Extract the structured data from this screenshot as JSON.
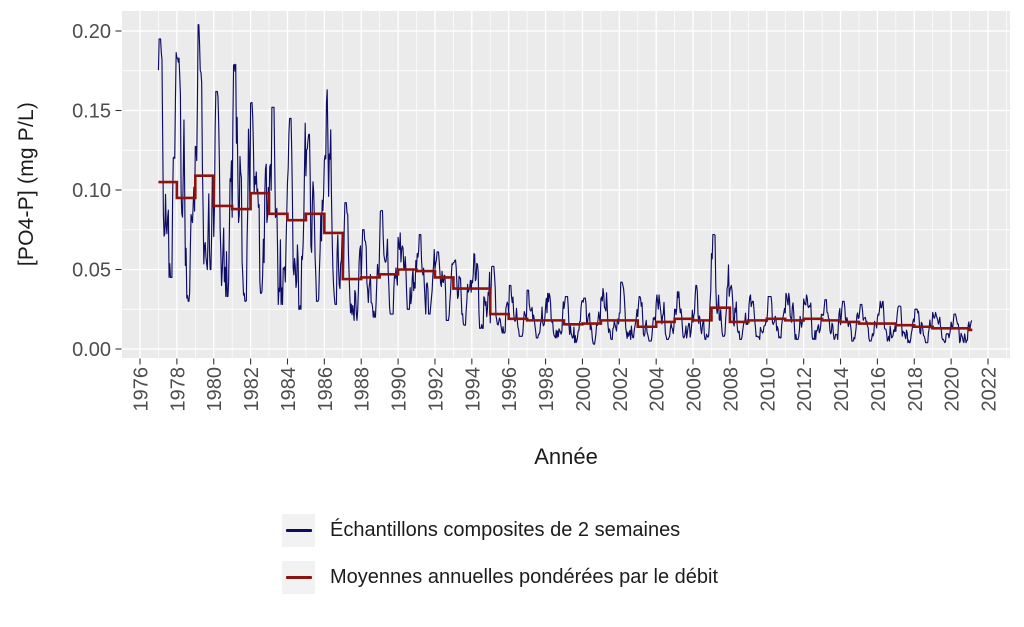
{
  "chart_data": {
    "type": "line",
    "title": "",
    "xlabel": "Année",
    "ylabel": "[PO4-P] (mg P/L)",
    "grid": true,
    "legend_position": "bottom",
    "x_axis": {
      "tick_years": [
        1976,
        1978,
        1980,
        1982,
        1984,
        1986,
        1988,
        1990,
        1992,
        1994,
        1996,
        1998,
        2000,
        2002,
        2004,
        2006,
        2008,
        2010,
        2012,
        2014,
        2016,
        2018,
        2020,
        2022
      ],
      "tick_labels": [
        "1976",
        "1978",
        "1980",
        "1982",
        "1984",
        "1986",
        "1988",
        "1990",
        "1992",
        "1994",
        "1996",
        "1998",
        "2000",
        "2002",
        "2004",
        "2006",
        "2008",
        "2010",
        "2012",
        "2014",
        "2016",
        "2018",
        "2020",
        "2022"
      ],
      "minor_years": [
        1977,
        1979,
        1981,
        1983,
        1985,
        1987,
        1989,
        1991,
        1993,
        1995,
        1997,
        1999,
        2001,
        2003,
        2005,
        2007,
        2009,
        2011,
        2013,
        2015,
        2017,
        2019,
        2021,
        2023
      ],
      "range": [
        1975.0,
        2023.2
      ]
    },
    "y_axis": {
      "tick_values": [
        0.0,
        0.05,
        0.1,
        0.15,
        0.2
      ],
      "tick_labels": [
        "0.00",
        "0.05",
        "0.10",
        "0.15",
        "0.20"
      ],
      "minor_values": [
        0.025,
        0.075,
        0.125,
        0.175
      ],
      "range": [
        -0.006,
        0.213
      ]
    },
    "colors": {
      "panel_bg": "#EBEBEB",
      "grid": "#FFFFFF",
      "legend_key_bg": "#F2F2F2",
      "axis_text": "#4D4D4D",
      "title_text": "#1c1c1c",
      "tick_mark": "#333333",
      "samples_blue": "#0d0d66",
      "means_red": "#8B1410"
    },
    "legend": [
      {
        "label": "Échantillons composites de 2 semaines",
        "color": "#0d0d66"
      },
      {
        "label": "Moyennes annuelles pondérées par le débit",
        "color": "#8B1410"
      }
    ],
    "x_start": 1977.0,
    "x_end": 2021.15,
    "series": [
      {
        "name": "Échantillons composites de 2 semaines",
        "type": "biweekly_samples_line",
        "color": "#0d0d66",
        "samples_per_year": 26,
        "annual_envelope_note": "per year: [year, annual mean, seasonal max, seasonal min] in mg P/L, read from plot",
        "annual_envelope": [
          [
            1977,
            0.105,
            0.195,
            0.045
          ],
          [
            1978,
            0.095,
            0.183,
            0.03
          ],
          [
            1979,
            0.109,
            0.204,
            0.05
          ],
          [
            1980,
            0.09,
            0.162,
            0.033
          ],
          [
            1981,
            0.088,
            0.179,
            0.03
          ],
          [
            1982,
            0.098,
            0.155,
            0.035
          ],
          [
            1983,
            0.085,
            0.152,
            0.028
          ],
          [
            1984,
            0.081,
            0.145,
            0.025
          ],
          [
            1985,
            0.085,
            0.135,
            0.03
          ],
          [
            1986,
            0.073,
            0.163,
            0.028
          ],
          [
            1987,
            0.044,
            0.092,
            0.018
          ],
          [
            1988,
            0.045,
            0.075,
            0.02
          ],
          [
            1989,
            0.047,
            0.087,
            0.022
          ],
          [
            1990,
            0.05,
            0.073,
            0.025
          ],
          [
            1991,
            0.049,
            0.072,
            0.022
          ],
          [
            1992,
            0.045,
            0.061,
            0.018
          ],
          [
            1993,
            0.038,
            0.056,
            0.015
          ],
          [
            1994,
            0.038,
            0.06,
            0.013
          ],
          [
            1995,
            0.022,
            0.052,
            0.01
          ],
          [
            1996,
            0.019,
            0.04,
            0.008
          ],
          [
            1997,
            0.018,
            0.037,
            0.007
          ],
          [
            1998,
            0.018,
            0.035,
            0.007
          ],
          [
            1999,
            0.0155,
            0.033,
            0.004
          ],
          [
            2000,
            0.016,
            0.032,
            0.003
          ],
          [
            2001,
            0.018,
            0.038,
            0.006
          ],
          [
            2002,
            0.018,
            0.042,
            0.006
          ],
          [
            2003,
            0.014,
            0.033,
            0.005
          ],
          [
            2004,
            0.017,
            0.034,
            0.006
          ],
          [
            2005,
            0.019,
            0.036,
            0.007
          ],
          [
            2006,
            0.018,
            0.04,
            0.006
          ],
          [
            2007,
            0.026,
            0.072,
            0.008
          ],
          [
            2008,
            0.017,
            0.04,
            0.006
          ],
          [
            2009,
            0.018,
            0.034,
            0.006
          ],
          [
            2010,
            0.019,
            0.033,
            0.007
          ],
          [
            2011,
            0.018,
            0.035,
            0.006
          ],
          [
            2012,
            0.019,
            0.034,
            0.006
          ],
          [
            2013,
            0.018,
            0.031,
            0.006
          ],
          [
            2014,
            0.017,
            0.03,
            0.005
          ],
          [
            2015,
            0.016,
            0.028,
            0.005
          ],
          [
            2016,
            0.016,
            0.03,
            0.005
          ],
          [
            2017,
            0.015,
            0.027,
            0.004
          ],
          [
            2018,
            0.014,
            0.025,
            0.004
          ],
          [
            2019,
            0.013,
            0.023,
            0.004
          ],
          [
            2020,
            0.013,
            0.022,
            0.004
          ],
          [
            2021,
            0.012,
            0.018,
            0.006
          ]
        ]
      },
      {
        "name": "Moyennes annuelles pondérées par le débit",
        "type": "step",
        "color": "#8B1410",
        "years": [
          1977,
          1978,
          1979,
          1980,
          1981,
          1982,
          1983,
          1984,
          1985,
          1986,
          1987,
          1988,
          1989,
          1990,
          1991,
          1992,
          1993,
          1994,
          1995,
          1996,
          1997,
          1998,
          1999,
          2000,
          2001,
          2002,
          2003,
          2004,
          2005,
          2006,
          2007,
          2008,
          2009,
          2010,
          2011,
          2012,
          2013,
          2014,
          2015,
          2016,
          2017,
          2018,
          2019,
          2020,
          2021
        ],
        "values": [
          0.105,
          0.095,
          0.109,
          0.09,
          0.088,
          0.098,
          0.085,
          0.081,
          0.085,
          0.073,
          0.044,
          0.045,
          0.047,
          0.05,
          0.049,
          0.045,
          0.038,
          0.038,
          0.022,
          0.019,
          0.018,
          0.018,
          0.0155,
          0.016,
          0.018,
          0.018,
          0.014,
          0.017,
          0.019,
          0.018,
          0.026,
          0.017,
          0.018,
          0.019,
          0.018,
          0.019,
          0.018,
          0.017,
          0.016,
          0.016,
          0.015,
          0.014,
          0.013,
          0.013,
          0.012
        ]
      }
    ]
  }
}
